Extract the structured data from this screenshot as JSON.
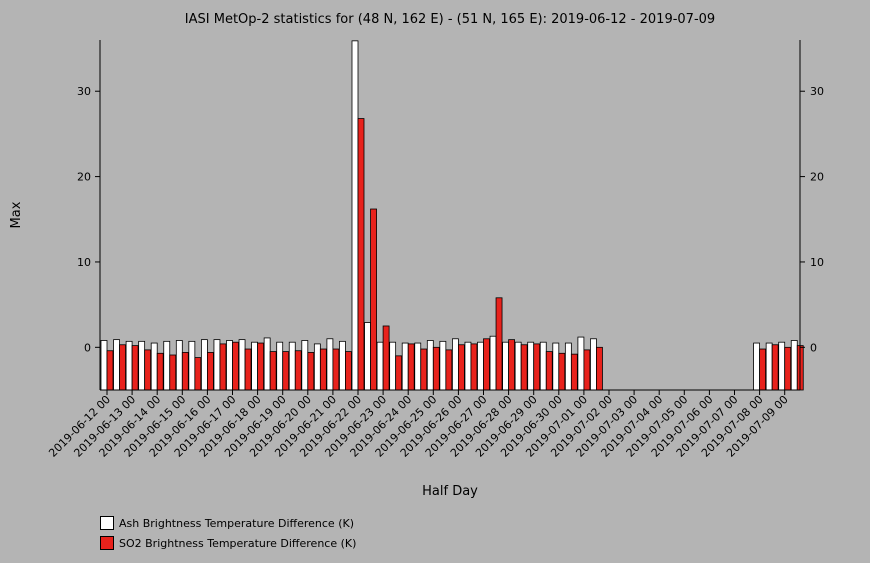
{
  "chart_data": {
    "type": "bar",
    "title": "IASI MetOp-2 statistics for (48 N, 162 E) - (51 N, 165 E): 2019-06-12 - 2019-07-09",
    "xlabel": "Half Day",
    "ylabel": "Max",
    "ylim": [
      -5,
      36
    ],
    "yticks": [
      0,
      10,
      20,
      30
    ],
    "tick_labels": [
      "2019-06-12 00",
      "2019-06-13 00",
      "2019-06-14 00",
      "2019-06-15 00",
      "2019-06-16 00",
      "2019-06-17 00",
      "2019-06-18 00",
      "2019-06-19 00",
      "2019-06-20 00",
      "2019-06-21 00",
      "2019-06-22 00",
      "2019-06-23 00",
      "2019-06-24 00",
      "2019-06-25 00",
      "2019-06-26 00",
      "2019-06-27 00",
      "2019-06-28 00",
      "2019-06-29 00",
      "2019-06-30 00",
      "2019-07-01 00",
      "2019-07-02 00",
      "2019-07-03 00",
      "2019-07-04 00",
      "2019-07-05 00",
      "2019-07-06 00",
      "2019-07-07 00",
      "2019-07-08 00",
      "2019-07-09 00"
    ],
    "series": [
      {
        "name": "Ash Brightness Temperature Difference (K)",
        "color": "#ffffff",
        "values": [
          0.8,
          0.9,
          0.7,
          0.7,
          0.5,
          0.7,
          0.8,
          0.7,
          0.9,
          0.9,
          0.8,
          0.9,
          0.6,
          1.1,
          0.6,
          0.6,
          0.8,
          0.4,
          1.0,
          0.7,
          35.9,
          2.9,
          0.6,
          0.6,
          0.5,
          0.5,
          0.8,
          0.7,
          1.0,
          0.6,
          0.6,
          1.3,
          0.6,
          0.6,
          0.6,
          0.6,
          0.5,
          0.5,
          1.2,
          1.0,
          null,
          null,
          null,
          null,
          null,
          null,
          null,
          null,
          null,
          null,
          null,
          null,
          0.5,
          0.5,
          0.6,
          0.8
        ]
      },
      {
        "name": "SO2 Brightness Temperature Difference (K)",
        "color": "#e8221c",
        "values": [
          -0.4,
          0.3,
          0.2,
          -0.3,
          -0.7,
          -0.9,
          -0.6,
          -1.2,
          -0.6,
          0.4,
          0.6,
          -0.2,
          0.5,
          -0.5,
          -0.5,
          -0.4,
          -0.6,
          -0.2,
          -0.2,
          -0.5,
          26.8,
          16.2,
          2.5,
          -1.0,
          0.4,
          -0.2,
          0.0,
          -0.3,
          0.3,
          0.4,
          1.0,
          5.8,
          0.9,
          0.3,
          0.4,
          -0.5,
          -0.7,
          -0.8,
          -0.3,
          0.0,
          null,
          null,
          null,
          null,
          null,
          null,
          null,
          null,
          null,
          null,
          null,
          null,
          -0.2,
          0.3,
          0.0,
          0.2
        ]
      }
    ],
    "legend_position": "bottom-left"
  }
}
